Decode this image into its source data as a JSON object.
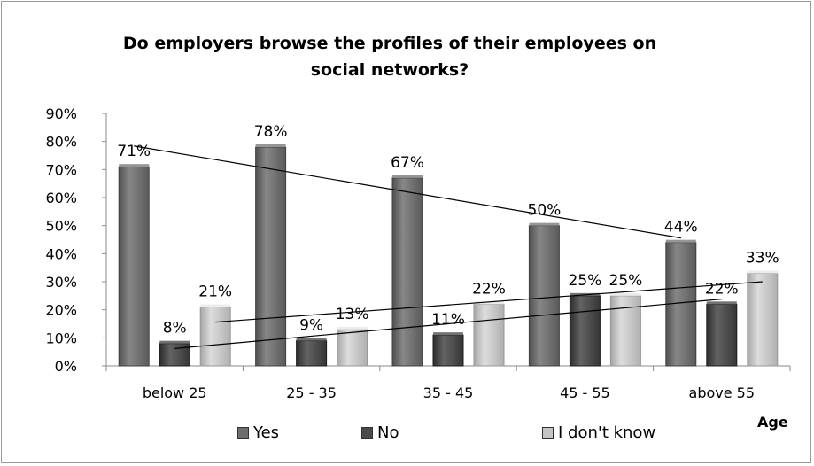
{
  "chart_data": {
    "type": "bar",
    "title": "Do employers browse the profiles of their employees on social networks?",
    "title_lines": [
      "Do employers browse the profiles of their employees on",
      "social networks?"
    ],
    "categories": [
      "below 25",
      "25 - 35",
      "35 - 45",
      "45 - 55",
      "above 55"
    ],
    "series": [
      {
        "name": "Yes",
        "values": [
          71,
          78,
          67,
          50,
          44
        ],
        "labels": [
          "71%",
          "78%",
          "67%",
          "50%",
          "44%"
        ],
        "color": "#6e6e6e"
      },
      {
        "name": "No",
        "values": [
          8,
          9,
          11,
          25,
          22
        ],
        "labels": [
          "8%",
          "9%",
          "11%",
          "25%",
          "22%"
        ],
        "color": "#4a4a4a"
      },
      {
        "name": "I don't know",
        "values": [
          21,
          13,
          22,
          25,
          33
        ],
        "labels": [
          "21%",
          "13%",
          "22%",
          "25%",
          "33%"
        ],
        "color": "#c4c4c4"
      }
    ],
    "xlabel": "Age",
    "ylabel": "",
    "ylim": [
      0,
      90
    ],
    "yticks": [
      "0%",
      "10%",
      "20%",
      "30%",
      "40%",
      "50%",
      "60%",
      "70%",
      "80%",
      "90%"
    ],
    "ytick_values": [
      0,
      10,
      20,
      30,
      40,
      50,
      60,
      70,
      80,
      90
    ],
    "trendlines": true,
    "legend_position": "bottom",
    "grid": false
  }
}
